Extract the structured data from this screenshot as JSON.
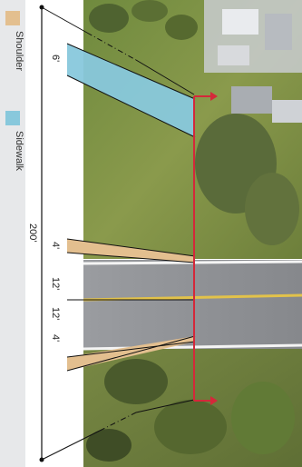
{
  "legend": {
    "items": [
      {
        "label": "Shoulder",
        "color": "#e3bf8f"
      },
      {
        "label": "Sidewalk",
        "color": "#88c8dc"
      }
    ]
  },
  "dimensions": {
    "total": "200'",
    "sidewalk": "6'",
    "shoulder_top": "4'",
    "lane_top": "12'",
    "lane_bottom": "12'",
    "shoulder_bottom": "4'"
  },
  "colors": {
    "boundary_line": "#d4283a",
    "grass": "#7d8f45",
    "road": "#8f9196",
    "center_line": "#e2c24a"
  }
}
